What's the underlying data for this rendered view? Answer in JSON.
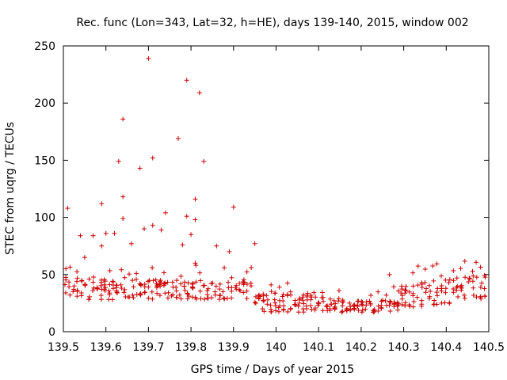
{
  "colors": {
    "series": "#cc0000",
    "axis": "#000000",
    "background": "#ffffff"
  },
  "chart_data": {
    "type": "scatter",
    "title": "Rec. func (Lon=343, Lat=32, h=HE), days 139-140, 2015, window 002",
    "xlabel": "GPS time / Days of year 2015",
    "ylabel": "STEC from uqrg / TECUs",
    "xlim": [
      139.5,
      140.5
    ],
    "ylim": [
      0,
      250
    ],
    "xticks": [
      139.5,
      139.6,
      139.7,
      139.8,
      139.9,
      140.0,
      140.1,
      140.2,
      140.3,
      140.4,
      140.5
    ],
    "xtick_labels": [
      "139.5",
      "139.6",
      "139.7",
      "139.8",
      "139.9",
      "140",
      "140.1",
      "140.2",
      "140.3",
      "140.4",
      "140.5"
    ],
    "yticks": [
      0,
      50,
      100,
      150,
      200,
      250
    ],
    "ytick_labels": [
      "0",
      "50",
      "100",
      "150",
      "200",
      "250"
    ],
    "marker": "+",
    "legend": "none",
    "grid": false,
    "series": [
      {
        "name": "STEC",
        "x": [
          139.7,
          139.79,
          139.82,
          139.64,
          139.77,
          139.71,
          139.63,
          139.83,
          139.68,
          139.81,
          139.64,
          139.74,
          139.79,
          139.59,
          139.51,
          139.81,
          139.9,
          139.64,
          139.71,
          139.6,
          139.54,
          139.57,
          139.73,
          139.86,
          139.95,
          139.8,
          139.69,
          139.78,
          139.59,
          139.62,
          139.81,
          139.89,
          139.55,
          139.66
        ],
        "y": [
          239,
          220,
          209,
          186,
          169,
          152,
          149,
          149,
          143,
          116,
          118,
          104,
          101,
          112,
          108,
          98,
          109,
          99,
          93,
          86,
          84,
          84,
          89,
          75,
          77,
          85,
          90,
          76,
          75,
          86,
          60,
          70,
          65,
          77
        ]
      }
    ]
  }
}
